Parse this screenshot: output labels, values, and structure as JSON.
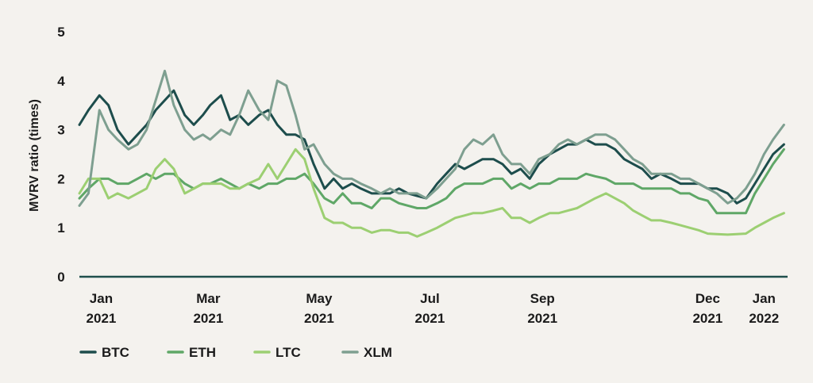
{
  "chart_data": {
    "type": "line",
    "title": "",
    "xlabel": "",
    "ylabel": "MVRV ratio (times)",
    "ylim": [
      0,
      5
    ],
    "yticks": [
      "0",
      "1",
      "2",
      "3",
      "4",
      "5"
    ],
    "grid": false,
    "legend_position": "bottom-left",
    "x_axis_start": "2020-12-20",
    "x_axis_end": "2022-01-14",
    "xticks": [
      {
        "date": "2021-01-01",
        "month": "Jan",
        "year": "2021"
      },
      {
        "date": "2021-03-01",
        "month": "Mar",
        "year": "2021"
      },
      {
        "date": "2021-05-01",
        "month": "May",
        "year": "2021"
      },
      {
        "date": "2021-07-01",
        "month": "Jul",
        "year": "2021"
      },
      {
        "date": "2021-09-01",
        "month": "Sep",
        "year": "2021"
      },
      {
        "date": "2021-12-01",
        "month": "Dec",
        "year": "2021"
      },
      {
        "date": "2022-01-01",
        "month": "Jan",
        "year": "2022"
      }
    ],
    "dates": [
      "2020-12-20",
      "2020-12-25",
      "2020-12-31",
      "2021-01-05",
      "2021-01-10",
      "2021-01-16",
      "2021-01-21",
      "2021-01-26",
      "2021-01-31",
      "2021-02-05",
      "2021-02-10",
      "2021-02-16",
      "2021-02-21",
      "2021-02-26",
      "2021-03-02",
      "2021-03-08",
      "2021-03-13",
      "2021-03-18",
      "2021-03-23",
      "2021-03-29",
      "2021-04-03",
      "2021-04-08",
      "2021-04-13",
      "2021-04-18",
      "2021-04-23",
      "2021-04-28",
      "2021-05-04",
      "2021-05-09",
      "2021-05-14",
      "2021-05-19",
      "2021-05-24",
      "2021-05-30",
      "2021-06-04",
      "2021-06-09",
      "2021-06-14",
      "2021-06-19",
      "2021-06-24",
      "2021-06-29",
      "2021-07-05",
      "2021-07-10",
      "2021-07-15",
      "2021-07-20",
      "2021-07-25",
      "2021-07-30",
      "2021-08-05",
      "2021-08-10",
      "2021-08-15",
      "2021-08-20",
      "2021-08-25",
      "2021-08-30",
      "2021-09-05",
      "2021-09-10",
      "2021-09-15",
      "2021-09-20",
      "2021-09-25",
      "2021-09-30",
      "2021-10-06",
      "2021-10-11",
      "2021-10-16",
      "2021-10-21",
      "2021-10-26",
      "2021-10-31",
      "2021-11-05",
      "2021-11-11",
      "2021-11-16",
      "2021-11-21",
      "2021-11-26",
      "2021-12-01",
      "2021-12-06",
      "2021-12-12",
      "2021-12-17",
      "2021-12-22",
      "2021-12-27",
      "2022-01-01",
      "2022-01-06",
      "2022-01-12"
    ],
    "series": [
      {
        "name": "BTC",
        "color": "#1d4d4c",
        "values": [
          3.1,
          3.4,
          3.7,
          3.5,
          3.0,
          2.7,
          2.9,
          3.1,
          3.4,
          3.6,
          3.8,
          3.3,
          3.1,
          3.3,
          3.5,
          3.7,
          3.2,
          3.3,
          3.1,
          3.3,
          3.4,
          3.1,
          2.9,
          2.9,
          2.8,
          2.3,
          1.8,
          2.0,
          1.8,
          1.9,
          1.8,
          1.7,
          1.7,
          1.7,
          1.8,
          1.7,
          1.65,
          1.6,
          1.9,
          2.1,
          2.3,
          2.2,
          2.3,
          2.4,
          2.4,
          2.3,
          2.1,
          2.2,
          2.0,
          2.3,
          2.5,
          2.6,
          2.7,
          2.7,
          2.8,
          2.7,
          2.7,
          2.6,
          2.4,
          2.3,
          2.2,
          2.0,
          2.1,
          2.0,
          1.9,
          1.9,
          1.9,
          1.8,
          1.8,
          1.7,
          1.5,
          1.6,
          1.9,
          2.2,
          2.5,
          2.7
        ]
      },
      {
        "name": "ETH",
        "color": "#5fa767",
        "values": [
          1.6,
          1.8,
          2.0,
          2.0,
          1.9,
          1.9,
          2.0,
          2.1,
          2.0,
          2.1,
          2.1,
          1.9,
          1.8,
          1.9,
          1.9,
          2.0,
          1.9,
          1.8,
          1.9,
          1.8,
          1.9,
          1.9,
          2.0,
          2.0,
          2.1,
          1.9,
          1.6,
          1.5,
          1.7,
          1.5,
          1.5,
          1.4,
          1.6,
          1.6,
          1.5,
          1.45,
          1.4,
          1.4,
          1.5,
          1.6,
          1.8,
          1.9,
          1.9,
          1.9,
          2.0,
          2.0,
          1.8,
          1.9,
          1.8,
          1.9,
          1.9,
          2.0,
          2.0,
          2.0,
          2.1,
          2.05,
          2.0,
          1.9,
          1.9,
          1.9,
          1.8,
          1.8,
          1.8,
          1.8,
          1.7,
          1.7,
          1.6,
          1.55,
          1.3,
          1.3,
          1.3,
          1.3,
          1.7,
          2.0,
          2.3,
          2.6
        ]
      },
      {
        "name": "LTC",
        "color": "#9ccf72",
        "values": [
          1.7,
          2.0,
          2.0,
          1.6,
          1.7,
          1.6,
          1.7,
          1.8,
          2.2,
          2.4,
          2.2,
          1.7,
          1.8,
          1.9,
          1.9,
          1.9,
          1.8,
          1.8,
          1.9,
          2.0,
          2.3,
          2.0,
          2.3,
          2.6,
          2.4,
          1.8,
          1.2,
          1.1,
          1.1,
          1.0,
          1.0,
          0.9,
          0.95,
          0.95,
          0.9,
          0.9,
          0.82,
          0.9,
          1.0,
          1.1,
          1.2,
          1.25,
          1.3,
          1.3,
          1.35,
          1.4,
          1.2,
          1.2,
          1.1,
          1.2,
          1.3,
          1.3,
          1.35,
          1.4,
          1.5,
          1.6,
          1.7,
          1.6,
          1.5,
          1.35,
          1.25,
          1.15,
          1.15,
          1.1,
          1.05,
          1.0,
          0.95,
          0.88,
          0.87,
          0.86,
          0.87,
          0.88,
          1.0,
          1.1,
          1.2,
          1.3
        ]
      },
      {
        "name": "XLM",
        "color": "#7e9f90",
        "values": [
          1.45,
          1.7,
          3.4,
          3.0,
          2.8,
          2.6,
          2.7,
          3.0,
          3.6,
          4.2,
          3.5,
          3.0,
          2.8,
          2.9,
          2.8,
          3.0,
          2.9,
          3.3,
          3.8,
          3.4,
          3.2,
          4.0,
          3.9,
          3.3,
          2.6,
          2.7,
          2.3,
          2.1,
          2.0,
          2.0,
          1.9,
          1.8,
          1.7,
          1.8,
          1.7,
          1.7,
          1.7,
          1.6,
          1.8,
          2.0,
          2.2,
          2.6,
          2.8,
          2.7,
          2.9,
          2.5,
          2.3,
          2.3,
          2.1,
          2.4,
          2.5,
          2.7,
          2.8,
          2.7,
          2.8,
          2.9,
          2.9,
          2.8,
          2.6,
          2.4,
          2.3,
          2.1,
          2.1,
          2.1,
          2.0,
          2.0,
          1.9,
          1.8,
          1.7,
          1.5,
          1.6,
          1.8,
          2.1,
          2.5,
          2.8,
          3.1
        ]
      }
    ]
  }
}
